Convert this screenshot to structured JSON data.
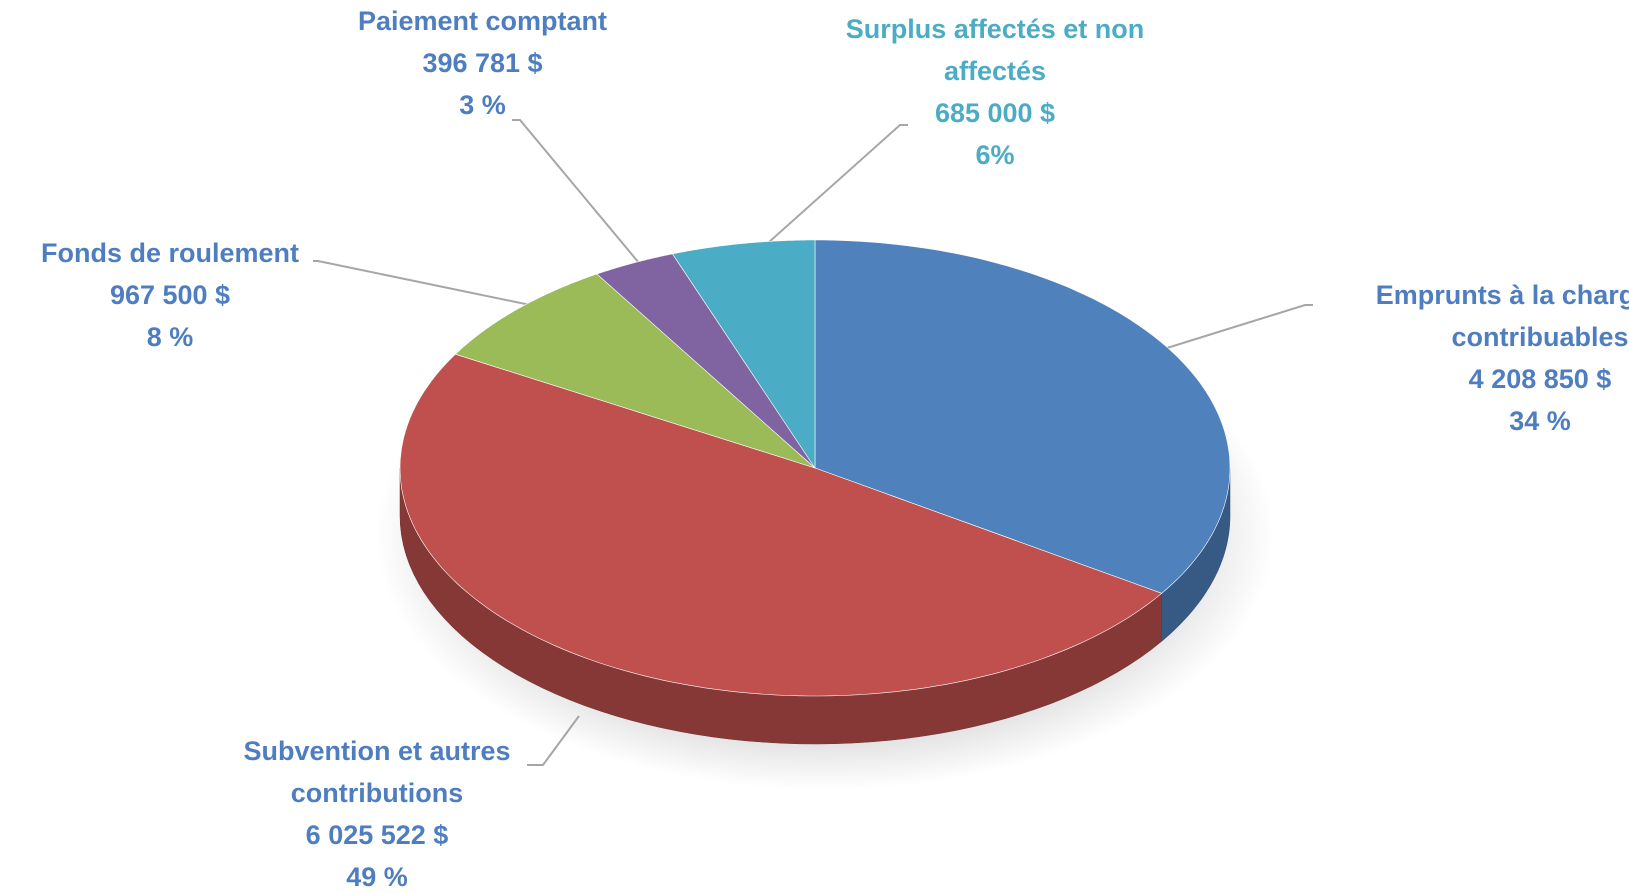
{
  "chart_data": {
    "type": "pie3d",
    "categories": [
      "Emprunts à la charge des contribuables",
      "Subvention et autres contributions",
      "Fonds de roulement",
      "Paiement comptant",
      "Surplus affectés et non affectés"
    ],
    "values": [
      4208850,
      6025522,
      967500,
      396781,
      685000
    ],
    "value_labels": [
      "4 208 850  $",
      "6 025 522  $",
      "967 500  $",
      "396 781  $",
      "685 000  $"
    ],
    "percent_labels": [
      "34 %",
      "49 %",
      "8 %",
      "3 %",
      "6%"
    ],
    "colors": [
      "#4f81bd",
      "#c0504d",
      "#9bbb59",
      "#8064a2",
      "#4bacc6"
    ],
    "label_colors": [
      "#4f7ec0",
      "#4f7ec0",
      "#4f7ec0",
      "#4f7ec0",
      "#4bacc6"
    ]
  }
}
